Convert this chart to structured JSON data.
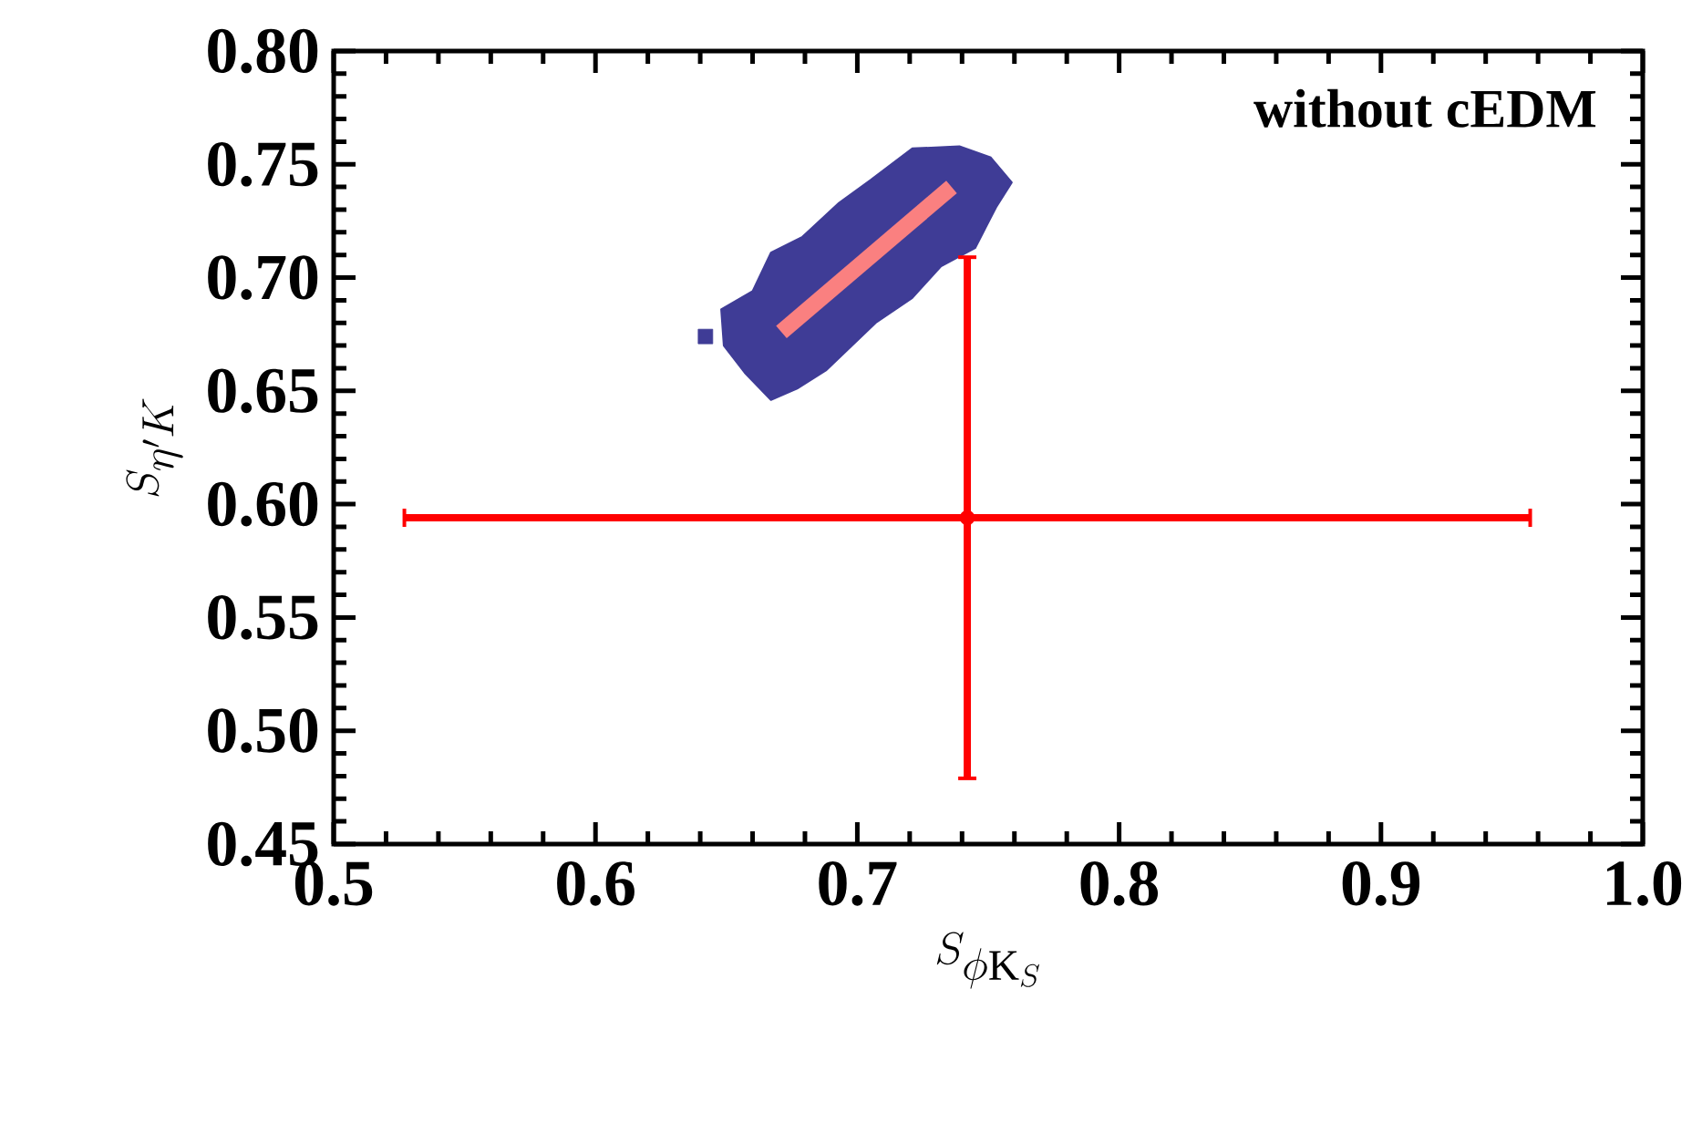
{
  "chart_data": {
    "type": "scatter",
    "xlabel": "S_{\\phi \\mathrm{K}_S}",
    "ylabel": "S_{\\eta' K}",
    "annotations": [
      "without cEDM"
    ],
    "xlim": [
      0.5,
      1.0
    ],
    "xticks": [
      {
        "value": 0.5,
        "label": "0.5"
      },
      {
        "value": 0.6,
        "label": "0.6"
      },
      {
        "value": 0.7,
        "label": "0.7"
      },
      {
        "value": 0.8,
        "label": "0.8"
      },
      {
        "value": 0.9,
        "label": "0.9"
      },
      {
        "value": 1.0,
        "label": "1.0"
      }
    ],
    "ylim": [
      0.45,
      0.8
    ],
    "yticks": [
      {
        "value": 0.45,
        "label": "0.45"
      },
      {
        "value": 0.5,
        "label": "0.50"
      },
      {
        "value": 0.55,
        "label": "0.55"
      },
      {
        "value": 0.6,
        "label": "0.60"
      },
      {
        "value": 0.65,
        "label": "0.65"
      },
      {
        "value": 0.7,
        "label": "0.70"
      },
      {
        "value": 0.75,
        "label": "0.75"
      },
      {
        "value": 0.8,
        "label": "0.80"
      }
    ],
    "grid": false,
    "series": [
      {
        "type": "area",
        "color": "#3f3c96",
        "x": [
          0.648,
          0.66,
          0.667,
          0.679,
          0.693,
          0.705,
          0.721,
          0.739,
          0.751,
          0.759,
          0.753,
          0.749,
          0.745,
          0.732,
          0.721,
          0.707,
          0.698,
          0.688,
          0.677,
          0.667,
          0.657,
          0.649
        ],
        "values": [
          0.686,
          0.694,
          0.711,
          0.718,
          0.733,
          0.743,
          0.757,
          0.758,
          0.753,
          0.742,
          0.731,
          0.722,
          0.713,
          0.705,
          0.691,
          0.68,
          0.67,
          0.659,
          0.651,
          0.646,
          0.658,
          0.67
        ]
      },
      {
        "color": "#3f3c96",
        "marker": "square",
        "x": [
          0.642
        ],
        "values": [
          0.674
        ]
      },
      {
        "type": "line",
        "color": "#fa8080",
        "x": [
          0.671,
          0.736
        ],
        "values": [
          0.676,
          0.74
        ]
      },
      {
        "color": "#ff0000",
        "marker": "circle",
        "x": [
          0.742
        ],
        "values": [
          0.594
        ],
        "errors": [
          0.115
        ],
        "xerrors": [
          0.215
        ]
      }
    ]
  }
}
